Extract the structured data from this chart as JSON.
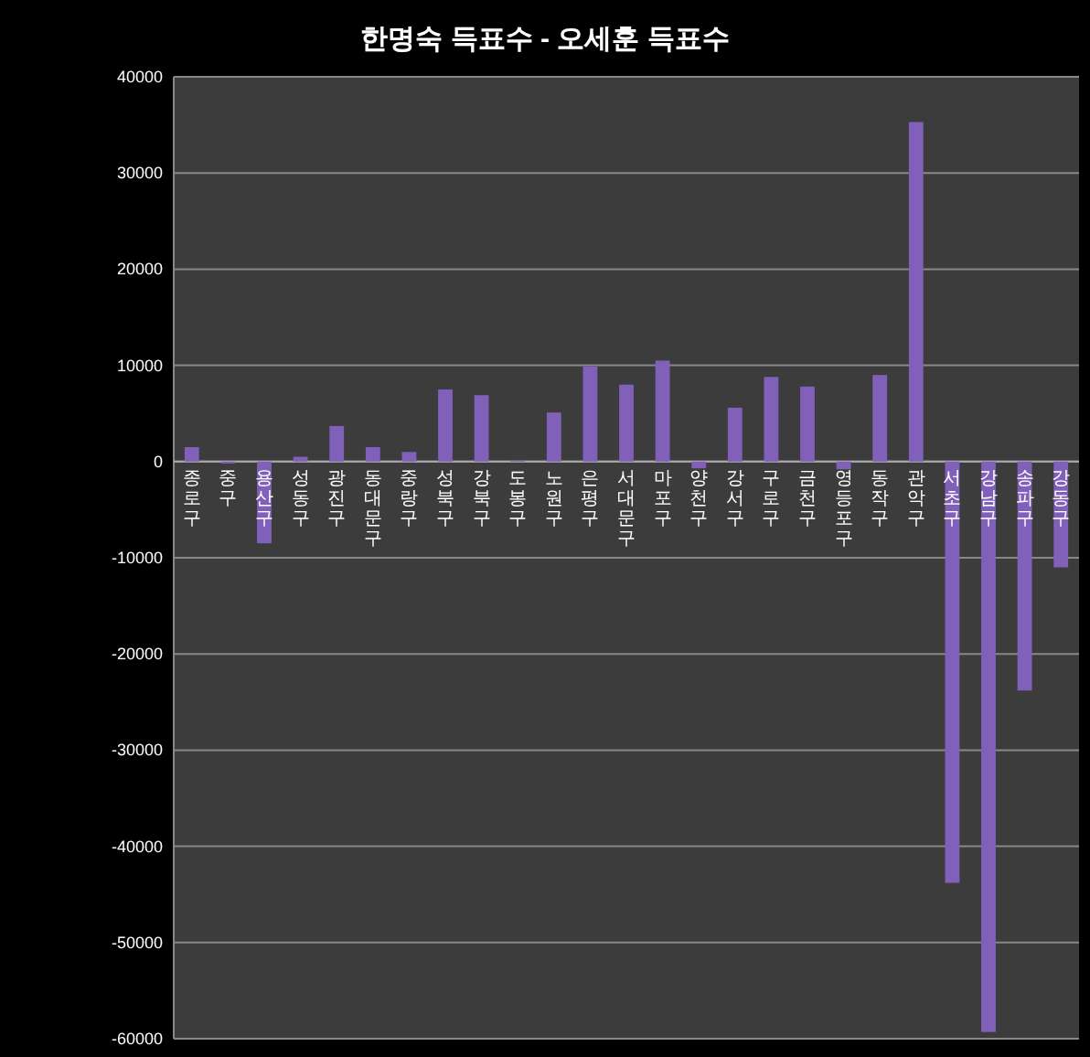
{
  "chart_data": {
    "type": "bar",
    "title": "한명숙 득표수 - 오세훈 득표수",
    "categories": [
      "종로구",
      "중구",
      "용산구",
      "성동구",
      "광진구",
      "동대문구",
      "중랑구",
      "성북구",
      "강북구",
      "도봉구",
      "노원구",
      "은평구",
      "서대문구",
      "마포구",
      "양천구",
      "강서구",
      "구로구",
      "금천구",
      "영등포구",
      "동작구",
      "관악구",
      "서초구",
      "강남구",
      "송파구",
      "강동구"
    ],
    "values": [
      1500,
      -200,
      -8500,
      500,
      3700,
      1500,
      1000,
      7500,
      6900,
      100,
      5100,
      9900,
      8000,
      10500,
      -700,
      5600,
      8800,
      7800,
      -800,
      9000,
      35300,
      -43800,
      -59300,
      -23800,
      -11000
    ],
    "color": "#8060b8",
    "ylim": [
      -60000,
      40000
    ],
    "yticks": [
      -60000,
      -50000,
      -40000,
      -30000,
      -20000,
      -10000,
      0,
      10000,
      20000,
      30000,
      40000
    ],
    "grid": "y"
  }
}
